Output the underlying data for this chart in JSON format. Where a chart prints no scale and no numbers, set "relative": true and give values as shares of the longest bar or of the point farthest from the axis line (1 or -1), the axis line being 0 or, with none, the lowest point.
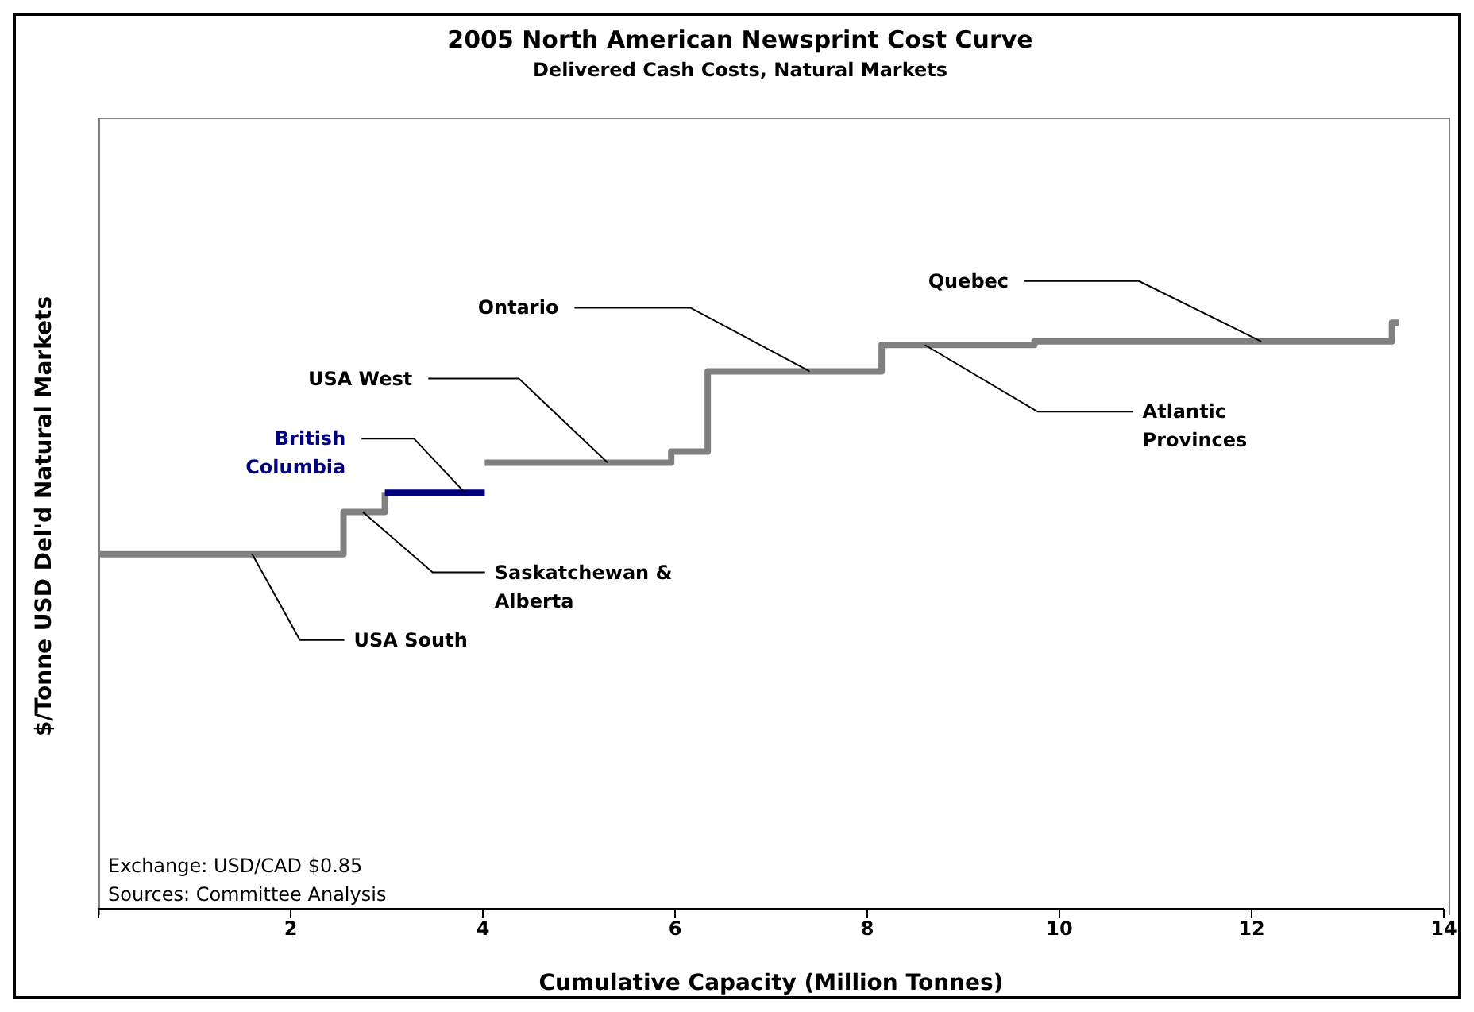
{
  "chart_data": {
    "type": "step",
    "title": "2005 North American Newsprint Cost Curve",
    "subtitle": "Delivered Cash Costs, Natural Markets",
    "xlabel": "Cumulative Capacity (Million Tonnes)",
    "ylabel": "$/Tonne USD Del'd Natural Markets",
    "relative": true,
    "xlim": [
      0,
      14
    ],
    "xticks": [
      {
        "value": 0,
        "label": null
      },
      2,
      4,
      6,
      8,
      10,
      12,
      14
    ],
    "series": [
      {
        "color": "#808080",
        "x": [
          0,
          2.55,
          2.98,
          3.5,
          4.02,
          5.96,
          6.34,
          8.15,
          9.74,
          13.46,
          13.53
        ],
        "values": [
          0.605,
          0.677,
          0.71,
          null,
          0.761,
          0.78,
          0.917,
          0.962,
          0.968,
          1,
          1
        ]
      },
      {
        "name": "British Columbia",
        "color": "#000080",
        "x": [
          2.98,
          4.02
        ],
        "values": [
          0.71,
          0.71
        ]
      }
    ],
    "annotations": [
      {
        "text": "USA South",
        "x": 1.6,
        "y": 0.605
      },
      {
        "text": "Saskatchewan &\nAlberta",
        "x": 2.75,
        "y": 0.677
      },
      {
        "text": "USA West",
        "x": 5.3,
        "y": 0.761
      },
      {
        "text": "Ontario",
        "x": 7.4,
        "y": 0.917
      },
      {
        "text": "Quebec",
        "x": 12.1,
        "y": 0.968
      },
      {
        "text": "Atlantic\nProvinces",
        "x": 8.6,
        "y": 0.962
      },
      "Exchange: USD/CAD $0.85",
      "Sources: Committee Analysis"
    ]
  }
}
